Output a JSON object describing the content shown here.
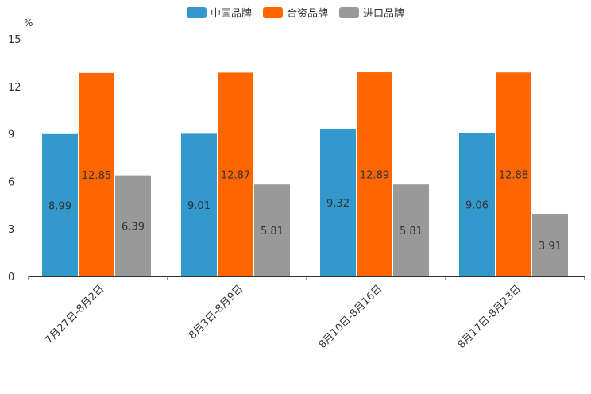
{
  "chart_data": {
    "type": "bar",
    "unit": "%",
    "categories": [
      "7月27日-8月2日",
      "8月3日-8月9日",
      "8月10日-8月16日",
      "8月17日-8月23日"
    ],
    "series": [
      {
        "name": "中国品牌",
        "color": "#3398cc",
        "values": [
          8.99,
          9.01,
          9.32,
          9.06
        ]
      },
      {
        "name": "合资品牌",
        "color": "#ff6600",
        "values": [
          12.85,
          12.87,
          12.89,
          12.88
        ]
      },
      {
        "name": "进口品牌",
        "color": "#999999",
        "values": [
          6.39,
          5.81,
          5.81,
          3.91
        ]
      }
    ],
    "yticks": [
      0,
      3,
      6,
      9,
      12,
      15
    ],
    "ylim": [
      0,
      15
    ]
  }
}
